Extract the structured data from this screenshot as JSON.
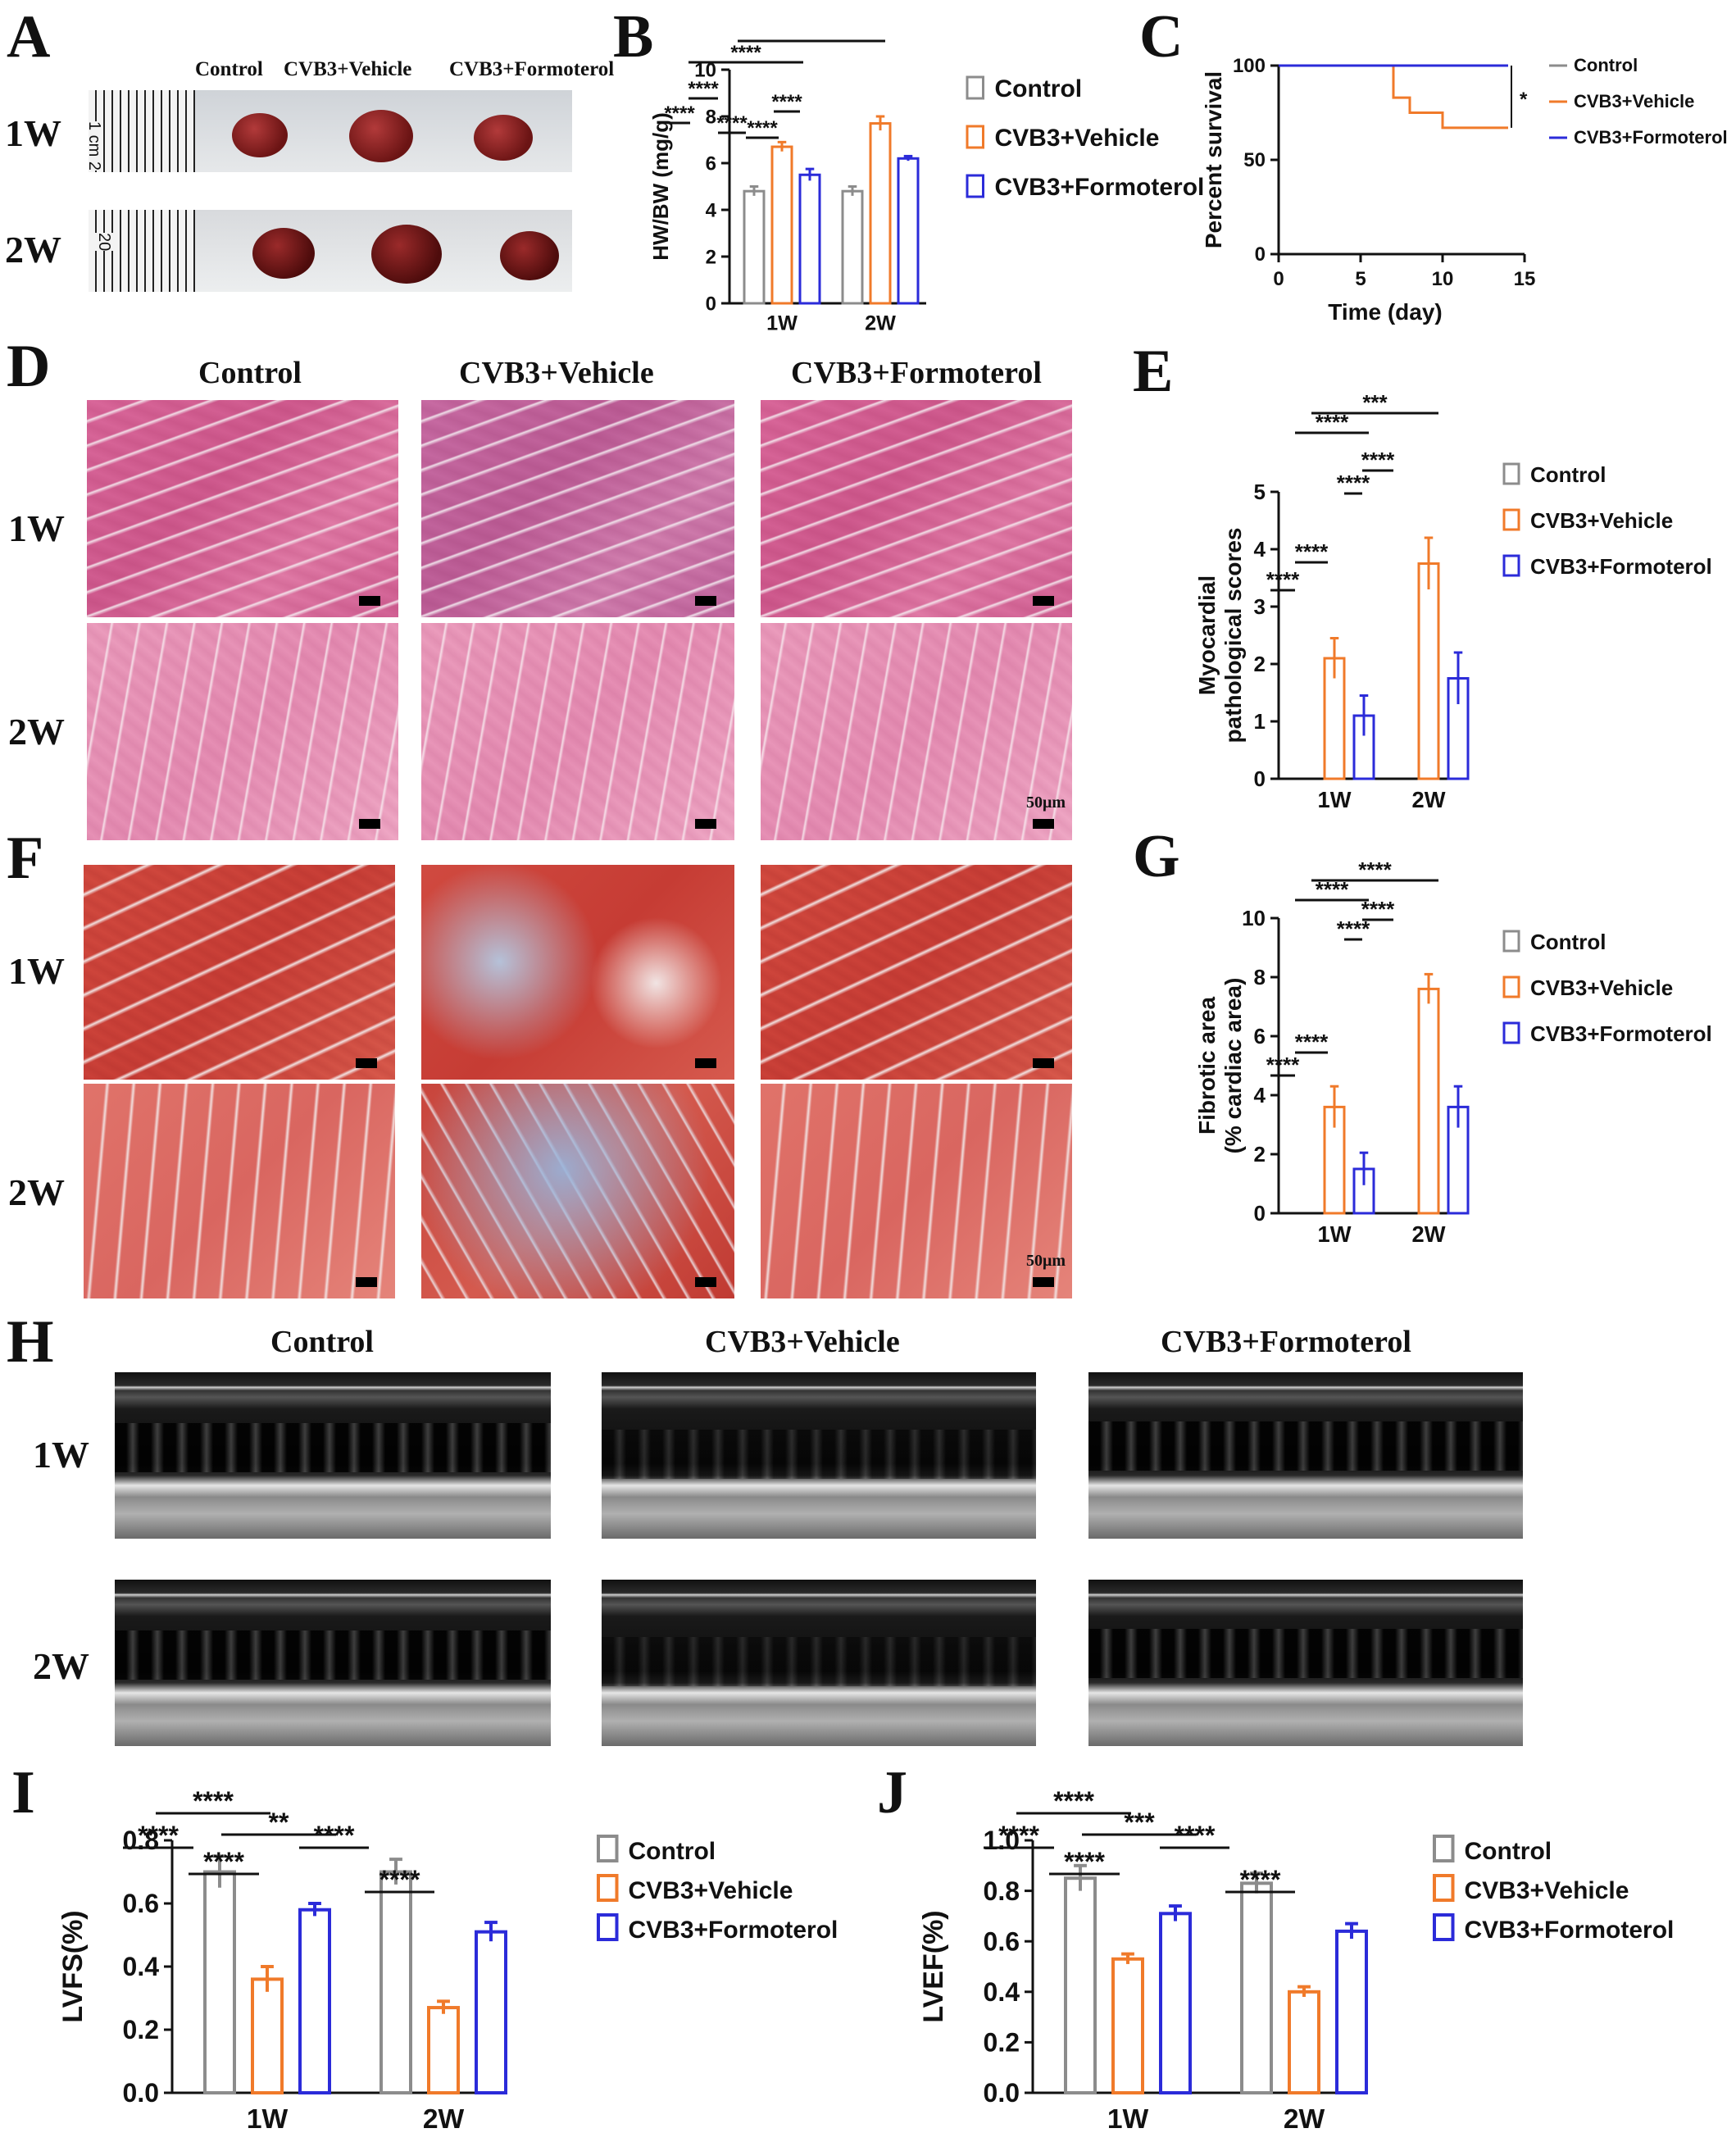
{
  "panels": {
    "A": {
      "letter": "A",
      "rows": [
        "1W",
        "2W"
      ],
      "groups": [
        "Control",
        "CVB3+Vehicle",
        "CVB3+Formoterol"
      ],
      "ruler_1w": "1 cm 2",
      "ruler_2w": "20"
    },
    "D": {
      "letter": "D",
      "rows": [
        "1W",
        "2W"
      ],
      "cols": [
        "Control",
        "CVB3+Vehicle",
        "CVB3+Formoterol"
      ],
      "scale": "50μm"
    },
    "F": {
      "letter": "F",
      "rows": [
        "1W",
        "2W"
      ],
      "scale": "50μm"
    },
    "H": {
      "letter": "H",
      "rows": [
        "1W",
        "2W"
      ],
      "cols": [
        "Control",
        "CVB3+Vehicle",
        "CVB3+Formoterol"
      ]
    }
  },
  "chart_data": [
    {
      "id": "B",
      "letter": "B",
      "type": "bar",
      "categories": [
        "1W",
        "2W"
      ],
      "series": [
        {
          "name": "Control",
          "values": [
            4.8,
            4.8
          ],
          "err": [
            0.2,
            0.2
          ],
          "color": "#8c8c8c"
        },
        {
          "name": "CVB3+Vehicle",
          "values": [
            6.7,
            7.7
          ],
          "err": [
            0.2,
            0.3
          ],
          "color": "#f07a2a"
        },
        {
          "name": "CVB3+Formoterol",
          "values": [
            5.5,
            6.2
          ],
          "err": [
            0.25,
            0.1
          ],
          "color": "#2b2bd9"
        }
      ],
      "ylabel": "HW/BW (mg/g)",
      "ylim": [
        0,
        10
      ],
      "yticks": [
        0,
        2,
        4,
        6,
        8,
        10
      ],
      "legend": "right",
      "annotations": [
        "****",
        "****",
        "****",
        "****",
        "****",
        "****"
      ]
    },
    {
      "id": "C",
      "letter": "C",
      "type": "line",
      "series": [
        {
          "name": "Control",
          "x": [
            0,
            14
          ],
          "y": [
            100,
            100
          ],
          "color": "#8c8c8c"
        },
        {
          "name": "CVB3+Vehicle",
          "x": [
            0,
            7,
            7,
            8,
            8,
            10,
            10,
            14
          ],
          "y": [
            100,
            100,
            83,
            83,
            75,
            75,
            67,
            67
          ],
          "color": "#f07a2a"
        },
        {
          "name": "CVB3+Formoterol",
          "x": [
            0,
            14
          ],
          "y": [
            100,
            100
          ],
          "color": "#2b2bd9"
        }
      ],
      "xlabel": "Time (day)",
      "ylabel": "Percent survival",
      "xlim": [
        0,
        15
      ],
      "ylim": [
        0,
        100
      ],
      "xticks": [
        0,
        5,
        10,
        15
      ],
      "yticks": [
        0,
        50,
        100
      ],
      "legend": "right",
      "annotation": "*"
    },
    {
      "id": "E",
      "letter": "E",
      "type": "bar",
      "categories": [
        "1W",
        "2W"
      ],
      "series": [
        {
          "name": "Control",
          "values": [
            0,
            0
          ],
          "err": [
            0,
            0
          ],
          "color": "#8c8c8c"
        },
        {
          "name": "CVB3+Vehicle",
          "values": [
            2.1,
            3.75
          ],
          "err": [
            0.35,
            0.45
          ],
          "color": "#f07a2a"
        },
        {
          "name": "CVB3+Formoterol",
          "values": [
            1.1,
            1.75
          ],
          "err": [
            0.35,
            0.45
          ],
          "color": "#2b2bd9"
        }
      ],
      "ylabel": "Myocardial pathological scores",
      "ylim": [
        0,
        5
      ],
      "yticks": [
        0,
        1,
        2,
        3,
        4,
        5
      ],
      "legend": "right",
      "annotations": [
        "****",
        "****",
        "****",
        "****",
        "****",
        "***"
      ]
    },
    {
      "id": "G",
      "letter": "G",
      "type": "bar",
      "categories": [
        "1W",
        "2W"
      ],
      "series": [
        {
          "name": "Control",
          "values": [
            0,
            0
          ],
          "err": [
            0,
            0
          ],
          "color": "#8c8c8c"
        },
        {
          "name": "CVB3+Vehicle",
          "values": [
            3.6,
            7.6
          ],
          "err": [
            0.7,
            0.5
          ],
          "color": "#f07a2a"
        },
        {
          "name": "CVB3+Formoterol",
          "values": [
            1.5,
            3.6
          ],
          "err": [
            0.55,
            0.7
          ],
          "color": "#2b2bd9"
        }
      ],
      "ylabel": "Fibrotic area (% cardiac area)",
      "ylim": [
        0,
        10
      ],
      "yticks": [
        0,
        2,
        4,
        6,
        8,
        10
      ],
      "legend": "right",
      "annotations": [
        "****",
        "****",
        "****",
        "****",
        "****",
        "****"
      ]
    },
    {
      "id": "I",
      "letter": "I",
      "type": "bar",
      "categories": [
        "1W",
        "2W"
      ],
      "series": [
        {
          "name": "Control",
          "values": [
            0.7,
            0.7
          ],
          "err": [
            0.05,
            0.04
          ],
          "color": "#8c8c8c"
        },
        {
          "name": "CVB3+Vehicle",
          "values": [
            0.36,
            0.27
          ],
          "err": [
            0.04,
            0.02
          ],
          "color": "#f07a2a"
        },
        {
          "name": "CVB3+Formoterol",
          "values": [
            0.58,
            0.51
          ],
          "err": [
            0.02,
            0.03
          ],
          "color": "#2b2bd9"
        }
      ],
      "ylabel": "LVFS(%)",
      "ylim": [
        0,
        0.8
      ],
      "yticks": [
        "0.0",
        "0.2",
        "0.4",
        "0.6",
        "0.8"
      ],
      "legend": "right",
      "annotations": [
        "****",
        "****",
        "****",
        "****",
        "****",
        "**"
      ]
    },
    {
      "id": "J",
      "letter": "J",
      "type": "bar",
      "categories": [
        "1W",
        "2W"
      ],
      "series": [
        {
          "name": "Control",
          "values": [
            0.85,
            0.83
          ],
          "err": [
            0.05,
            0.04
          ],
          "color": "#8c8c8c"
        },
        {
          "name": "CVB3+Vehicle",
          "values": [
            0.53,
            0.4
          ],
          "err": [
            0.02,
            0.02
          ],
          "color": "#f07a2a"
        },
        {
          "name": "CVB3+Formoterol",
          "values": [
            0.71,
            0.64
          ],
          "err": [
            0.03,
            0.03
          ],
          "color": "#2b2bd9"
        }
      ],
      "ylabel": "LVEF(%)",
      "ylim": [
        0,
        1.0
      ],
      "yticks": [
        "0.0",
        "0.2",
        "0.4",
        "0.6",
        "0.8",
        "1.0"
      ],
      "legend": "right",
      "annotations": [
        "****",
        "****",
        "****",
        "****",
        "****",
        "***"
      ]
    }
  ]
}
